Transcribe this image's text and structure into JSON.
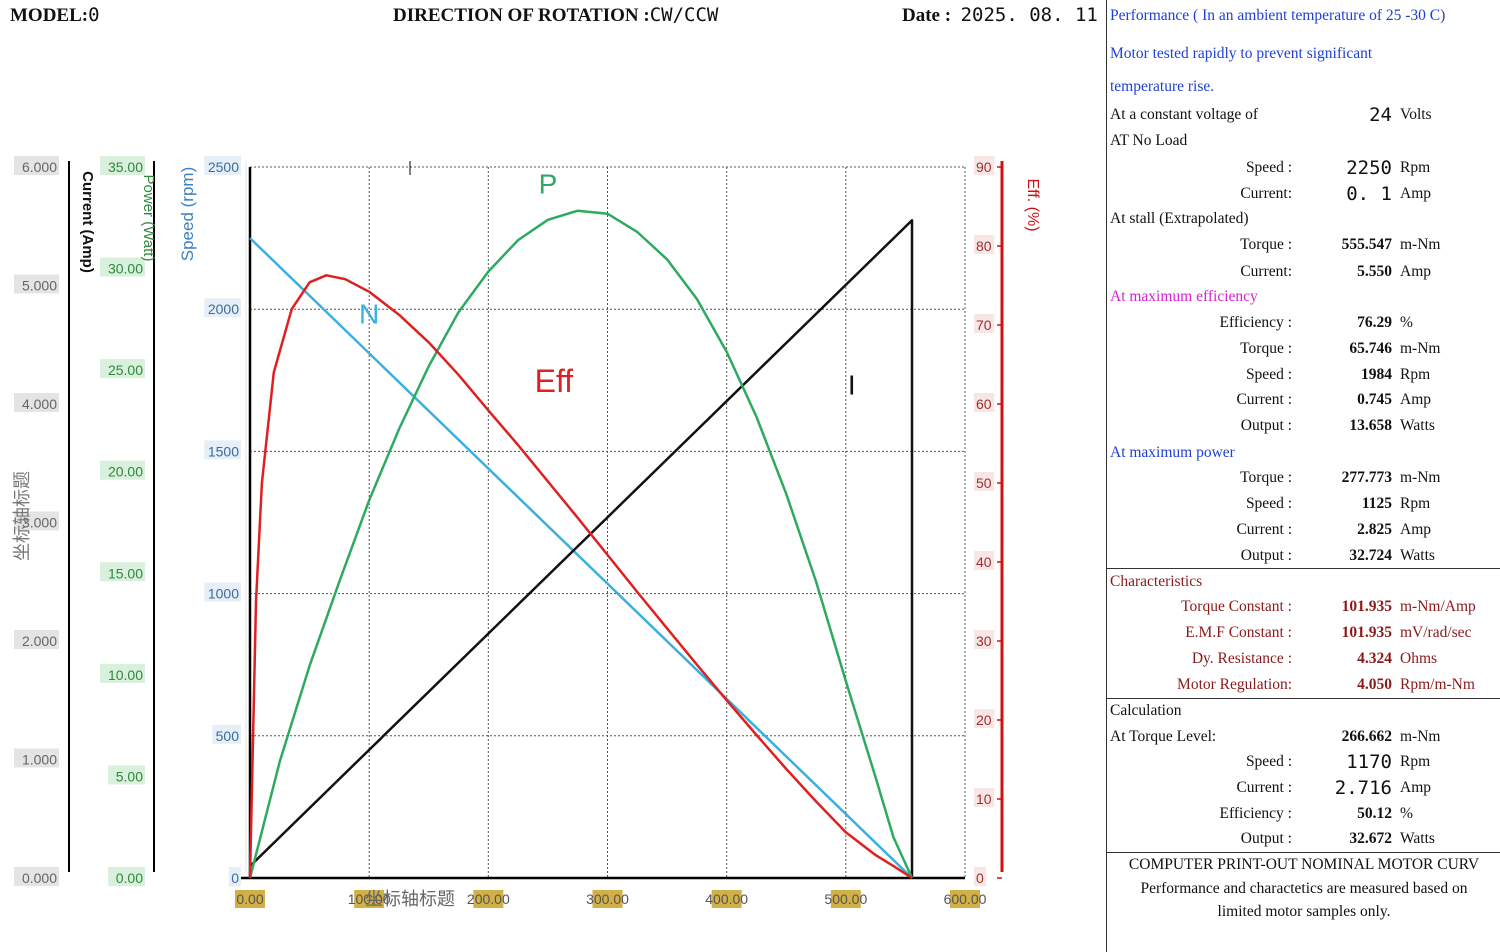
{
  "header": {
    "model_label": "MODEL:",
    "model_value": "0",
    "direction_label": "DIRECTION OF ROTATION :",
    "direction_value": "CW/CCW",
    "date_label": "Date :",
    "date_value": "2025. 08. 11"
  },
  "colors": {
    "speed": "#3ab0e0",
    "efficiency": "#e02020",
    "power": "#2eaa60",
    "current": "#111111",
    "power_axis_text": "#2e8a3a",
    "speed_axis_text": "#3a7fc0",
    "eff_axis": "#d01010",
    "xtick_bg": "#c9a227"
  },
  "chart_data": {
    "type": "line",
    "x": [
      0,
      25,
      50,
      75,
      100,
      125,
      150,
      175,
      200,
      225,
      250,
      275,
      300,
      325,
      350,
      375,
      400,
      425,
      450,
      475,
      500,
      525,
      555.547
    ],
    "xlim": [
      0,
      600
    ],
    "xticks": [
      "0.00",
      "100.00",
      "200.00",
      "300.00",
      "400.00",
      "500.00",
      "600.00"
    ],
    "xlabel": "坐标轴标题",
    "axes": {
      "current": {
        "label": "Current (Amp)",
        "range": [
          0,
          6
        ],
        "ticks": [
          "0.000",
          "1.000",
          "2.000",
          "3.000",
          "4.000",
          "5.000",
          "6.000"
        ]
      },
      "power": {
        "label": "Power (Watt)",
        "range": [
          0,
          35
        ],
        "ticks": [
          "0.00",
          "5.00",
          "10.00",
          "15.00",
          "20.00",
          "25.00",
          "30.00",
          "35.00"
        ]
      },
      "speed": {
        "label": "Speed (rpm)",
        "range": [
          0,
          2500
        ],
        "ticks": [
          "0",
          "500",
          "1000",
          "1500",
          "2000",
          "2500"
        ]
      },
      "efficiency": {
        "label": "Eff. (%)",
        "range": [
          0,
          90
        ],
        "ticks": [
          "0",
          "10",
          "20",
          "30",
          "40",
          "50",
          "60",
          "70",
          "80",
          "90"
        ]
      },
      "title_left": "坐标轴标题"
    },
    "series": [
      {
        "name": "N",
        "axis": "speed",
        "colorKey": "speed",
        "x": [
          0,
          555.547
        ],
        "values": [
          2250,
          0
        ]
      },
      {
        "name": "I",
        "axis": "current",
        "colorKey": "current",
        "x": [
          0,
          555.547,
          555.547
        ],
        "values": [
          0.1,
          5.55,
          0
        ]
      },
      {
        "name": "P",
        "axis": "power",
        "colorKey": "power",
        "x": [
          0,
          25,
          50,
          75,
          100,
          125,
          150,
          175,
          200,
          225,
          250,
          275,
          300,
          325,
          350,
          375,
          400,
          425,
          450,
          475,
          500,
          525,
          540,
          555.547
        ],
        "values": [
          0,
          5.74,
          10.45,
          14.6,
          18.6,
          22.1,
          25.2,
          27.85,
          29.85,
          31.4,
          32.4,
          32.85,
          32.7,
          31.8,
          30.45,
          28.5,
          25.9,
          22.7,
          18.9,
          14.6,
          9.7,
          4.95,
          2.0,
          0
        ]
      },
      {
        "name": "Eff",
        "axis": "efficiency",
        "colorKey": "efficiency",
        "x": [
          0,
          5,
          10,
          20,
          35,
          50,
          64,
          80,
          100,
          125,
          150,
          175,
          200,
          225,
          250,
          275,
          300,
          325,
          350,
          375,
          400,
          425,
          450,
          475,
          500,
          525,
          540,
          555.547
        ],
        "values": [
          0,
          35,
          50,
          64,
          72,
          75.4,
          76.29,
          75.8,
          74.2,
          71.3,
          67.8,
          63.7,
          59.2,
          54.8,
          50.2,
          45.6,
          40.9,
          36.2,
          31.6,
          27.0,
          22.5,
          18.1,
          13.8,
          9.7,
          5.8,
          2.9,
          1.5,
          0
        ]
      }
    ],
    "series_labels": [
      {
        "text": "N",
        "colorKey": "speed",
        "at_x": 100,
        "at_axis": "speed",
        "at_val": 1950
      },
      {
        "text": "P",
        "colorKey": "power",
        "at_x": 250,
        "at_axis": "power",
        "at_val": 33.7
      },
      {
        "text": "Eff",
        "colorKey": "efficiency",
        "at_x": 255,
        "at_axis": "efficiency",
        "at_val": 61.5
      },
      {
        "text": "I",
        "colorKey": "current",
        "at_x": 505,
        "at_axis": "current",
        "at_val": 4.08
      }
    ]
  },
  "performance": {
    "heading": "Performance ( In an ambient temperature of 25 -30 C)",
    "note_line1": "Motor tested rapidly to prevent significant",
    "note_line2": "temperature rise.",
    "voltage_label": "At a constant voltage of",
    "voltage_value": "24",
    "voltage_unit": "Volts",
    "no_load_label": "AT No Load",
    "no_load": [
      {
        "label": "Speed :",
        "value": "2250",
        "unit": "Rpm"
      },
      {
        "label": "Current:",
        "value": "0. 1",
        "unit": "Amp"
      }
    ],
    "stall_label": "At stall (Extrapolated)",
    "stall": [
      {
        "label": "Torque :",
        "value": "555.547",
        "unit": "m-Nm"
      },
      {
        "label": "Current:",
        "value": "5.550",
        "unit": "Amp"
      }
    ],
    "max_eff_label": "At maximum efficiency",
    "max_eff": [
      {
        "label": "Efficiency :",
        "value": "76.29",
        "unit": "%"
      },
      {
        "label": "Torque :",
        "value": "65.746",
        "unit": "m-Nm"
      },
      {
        "label": "Speed :",
        "value": "1984",
        "unit": "Rpm"
      },
      {
        "label": "Current :",
        "value": "0.745",
        "unit": "Amp"
      },
      {
        "label": "Output :",
        "value": "13.658",
        "unit": "Watts"
      }
    ],
    "max_power_label": "At maximum power",
    "max_power": [
      {
        "label": "Torque :",
        "value": "277.773",
        "unit": "m-Nm"
      },
      {
        "label": "Speed :",
        "value": "1125",
        "unit": "Rpm"
      },
      {
        "label": "Current :",
        "value": "2.825",
        "unit": "Amp"
      },
      {
        "label": "Output :",
        "value": "32.724",
        "unit": "Watts"
      }
    ]
  },
  "characteristics": {
    "heading": "Characteristics",
    "rows": [
      {
        "label": "Torque Constant :",
        "value": "101.935",
        "unit": "m-Nm/Amp"
      },
      {
        "label": "E.M.F Constant :",
        "value": "101.935",
        "unit": "mV/rad/sec"
      },
      {
        "label": "Dy. Resistance :",
        "value": "4.324",
        "unit": "Ohms"
      },
      {
        "label": "Motor Regulation:",
        "value": "4.050",
        "unit": "Rpm/m-Nm"
      }
    ]
  },
  "calculation": {
    "heading": "Calculation",
    "torque_level_label": "At Torque Level:",
    "torque_level_value": "266.662",
    "torque_level_unit": "m-Nm",
    "rows": [
      {
        "label": "Speed :",
        "value": "1170",
        "unit": "Rpm"
      },
      {
        "label": "Current :",
        "value": "2.716",
        "unit": "Amp"
      },
      {
        "label": "Efficiency :",
        "value": "50.12",
        "unit": "%"
      },
      {
        "label": "Output :",
        "value": "32.672",
        "unit": "Watts"
      }
    ]
  },
  "footer": {
    "title": "COMPUTER PRINT-OUT NOMINAL MOTOR CURV",
    "line1": "Performance and charactetics are measured based on",
    "line2": "limited motor samples only."
  }
}
